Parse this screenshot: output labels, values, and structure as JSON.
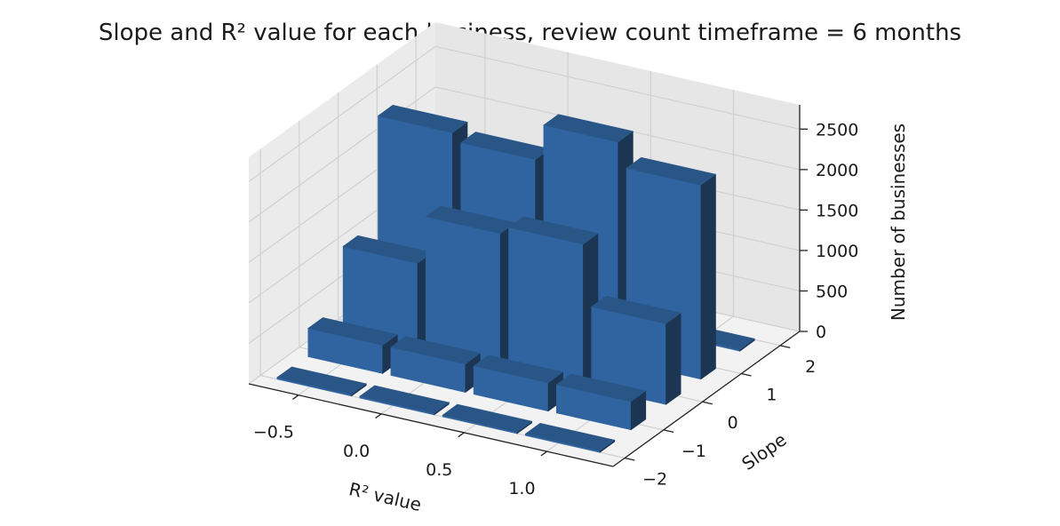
{
  "chart_data": {
    "type": "bar3d",
    "title": "Slope and R² value for each business, review count timeframe = 6 months",
    "xlabel": "R² value",
    "ylabel": "Slope",
    "zlabel": "Number of businesses",
    "xlim": [
      -0.8,
      1.4
    ],
    "ylim": [
      -2.3,
      2.5
    ],
    "zlim": [
      0,
      2800
    ],
    "xticks": [
      "−0.5",
      "0.0",
      "0.5",
      "1.0"
    ],
    "xtick_values": [
      -0.5,
      0.0,
      0.5,
      1.0
    ],
    "yticks": [
      "−2",
      "−1",
      "0",
      "1",
      "2"
    ],
    "ytick_values": [
      -2,
      -1,
      0,
      1,
      2
    ],
    "zticks": [
      "0",
      "500",
      "1000",
      "1500",
      "2000",
      "2500"
    ],
    "ztick_values": [
      0,
      500,
      1000,
      1500,
      2000,
      2500
    ],
    "grid": true,
    "bar_color": "#2f64a0",
    "bars": [
      {
        "x": -0.7,
        "y": 0.6,
        "value": 2350
      },
      {
        "x": -0.2,
        "y": 0.6,
        "value": 2250
      },
      {
        "x": 0.3,
        "y": 0.6,
        "value": 2700
      },
      {
        "x": 0.8,
        "y": 0.6,
        "value": 2400
      },
      {
        "x": -0.7,
        "y": -0.3,
        "value": 1050
      },
      {
        "x": -0.2,
        "y": -0.3,
        "value": 1650
      },
      {
        "x": 0.3,
        "y": -0.3,
        "value": 1750
      },
      {
        "x": 0.8,
        "y": -0.3,
        "value": 1000
      },
      {
        "x": -0.7,
        "y": -1.2,
        "value": 350
      },
      {
        "x": -0.2,
        "y": -1.2,
        "value": 350
      },
      {
        "x": 0.3,
        "y": -1.2,
        "value": 350
      },
      {
        "x": 0.8,
        "y": -1.2,
        "value": 350
      },
      {
        "x": -0.7,
        "y": -2.0,
        "value": 20
      },
      {
        "x": -0.2,
        "y": -2.0,
        "value": 20
      },
      {
        "x": 0.3,
        "y": -2.0,
        "value": 20
      },
      {
        "x": 0.8,
        "y": -2.0,
        "value": 20
      },
      {
        "x": -0.7,
        "y": 1.6,
        "value": 20
      },
      {
        "x": 0.3,
        "y": 1.6,
        "value": 20
      },
      {
        "x": 0.8,
        "y": 1.6,
        "value": 20
      }
    ]
  }
}
